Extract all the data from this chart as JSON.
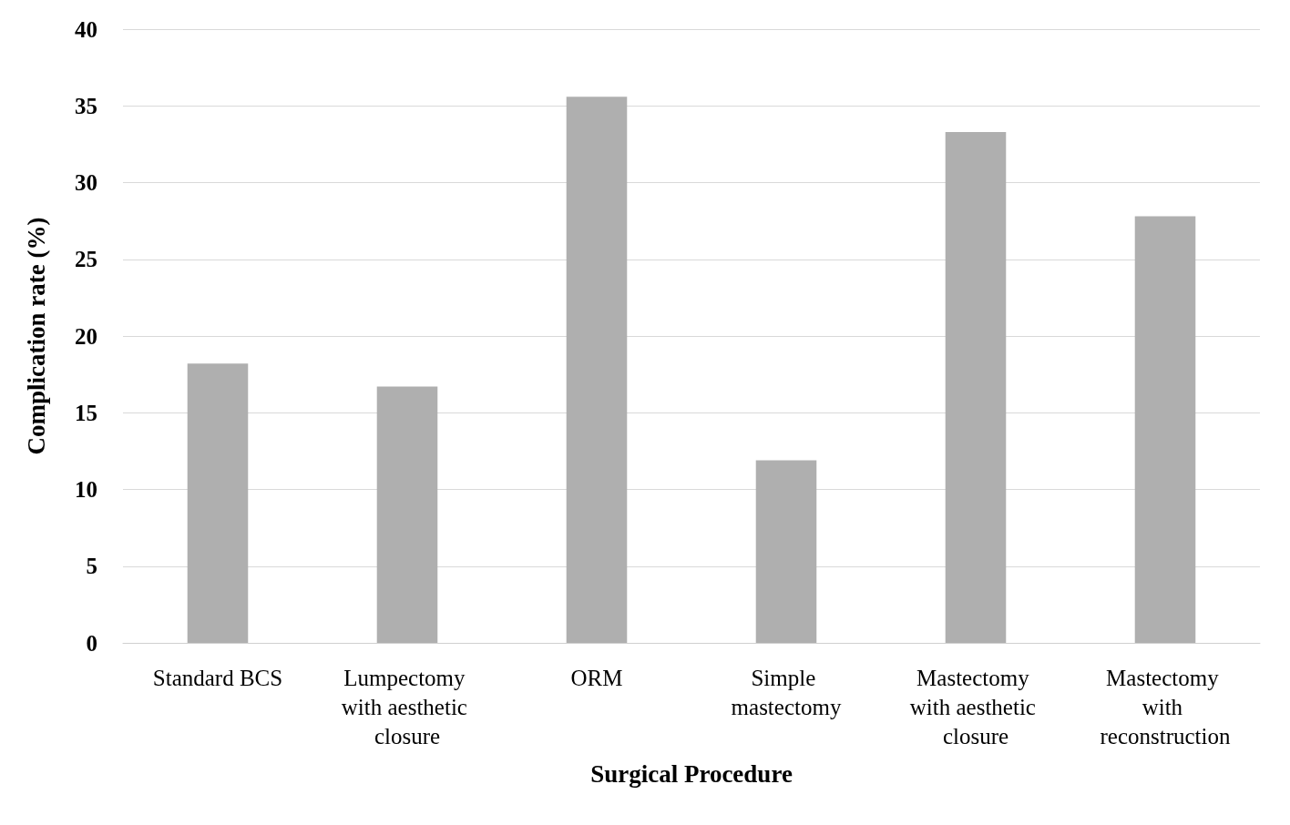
{
  "chart_data": {
    "type": "bar",
    "xlabel": "Surgical Procedure",
    "ylabel": "Complication rate (%)",
    "categories": [
      "Standard BCS",
      "Lumpectomy with aesthetic closure",
      "ORM",
      "Simple mastectomy",
      "Mastectomy with aesthetic closure",
      "Mastectomy with reconstruction"
    ],
    "values": [
      18.2,
      16.7,
      35.6,
      11.9,
      33.3,
      27.8
    ],
    "color": "#afafaf",
    "ylim": [
      0,
      40
    ],
    "yticks": [
      0,
      5,
      10,
      15,
      20,
      25,
      30,
      35,
      40
    ],
    "grid": "y"
  }
}
